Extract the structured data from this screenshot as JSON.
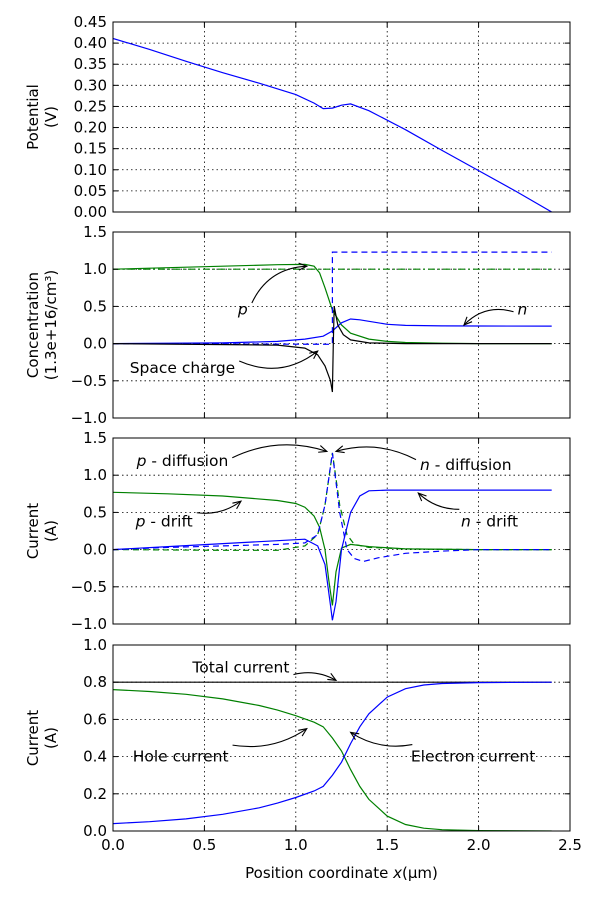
{
  "colors": {
    "blue": "#0000ff",
    "green": "#008000",
    "black": "#000000"
  },
  "chart_data": [
    {
      "type": "line",
      "ylabel": "Potential",
      "ylabel2": "(V)",
      "xlim": [
        0,
        2.5
      ],
      "ylim": [
        0,
        0.45
      ],
      "yticks": [
        "0.00",
        "0.05",
        "0.10",
        "0.15",
        "0.20",
        "0.25",
        "0.30",
        "0.35",
        "0.40",
        "0.45"
      ],
      "ytick_values": [
        0,
        0.05,
        0.1,
        0.15,
        0.2,
        0.25,
        0.3,
        0.35,
        0.4,
        0.45
      ],
      "xticks": [
        0,
        0.5,
        1.0,
        1.5,
        2.0,
        2.5
      ],
      "grid": true,
      "series": [
        {
          "color": "blue",
          "dash": "solid",
          "x": [
            0,
            0.2,
            0.4,
            0.6,
            0.8,
            1.0,
            1.1,
            1.15,
            1.2,
            1.25,
            1.3,
            1.4,
            1.6,
            1.8,
            2.0,
            2.2,
            2.4
          ],
          "y": [
            0.411,
            0.385,
            0.357,
            0.33,
            0.305,
            0.278,
            0.258,
            0.245,
            0.246,
            0.253,
            0.256,
            0.24,
            0.195,
            0.146,
            0.098,
            0.05,
            0.0
          ]
        }
      ],
      "annotations": []
    },
    {
      "type": "line",
      "ylabel": "Concentration",
      "ylabel2": "(1.3e+16/cm³)",
      "xlim": [
        0,
        2.5
      ],
      "ylim": [
        -1.0,
        1.5
      ],
      "yticks": [
        "−1.0",
        "−0.5",
        "0.0",
        "0.5",
        "1.0",
        "1.5"
      ],
      "ytick_values": [
        -1.0,
        -0.5,
        0.0,
        0.5,
        1.0,
        1.5
      ],
      "xticks": [
        0,
        0.5,
        1.0,
        1.5,
        2.0,
        2.5
      ],
      "grid": true,
      "series": [
        {
          "color": "green",
          "dash": "solid",
          "x": [
            0,
            0.3,
            0.6,
            0.9,
            1.05,
            1.1,
            1.13,
            1.16,
            1.2,
            1.25,
            1.3,
            1.4,
            1.5,
            1.6,
            1.8,
            2.0,
            2.4
          ],
          "y": [
            1.0,
            1.02,
            1.04,
            1.06,
            1.065,
            1.04,
            0.95,
            0.75,
            0.45,
            0.25,
            0.14,
            0.06,
            0.03,
            0.015,
            0.005,
            0.0,
            0.0
          ]
        },
        {
          "color": "green",
          "dash": "dashdot",
          "x": [
            0,
            1.2,
            1.2,
            2.4
          ],
          "y": [
            1.0,
            1.0,
            1.0,
            1.0
          ]
        },
        {
          "color": "blue",
          "dash": "dashed",
          "x": [
            0,
            1.18,
            1.2,
            1.2,
            2.4
          ],
          "y": [
            0.0,
            -0.01,
            0.0,
            1.23,
            1.23
          ]
        },
        {
          "color": "blue",
          "dash": "solid",
          "x": [
            0,
            0.3,
            0.6,
            0.9,
            1.05,
            1.15,
            1.2,
            1.25,
            1.3,
            1.35,
            1.4,
            1.5,
            1.6,
            1.8,
            2.0,
            2.4
          ],
          "y": [
            0.0,
            0.005,
            0.01,
            0.03,
            0.06,
            0.1,
            0.17,
            0.28,
            0.33,
            0.32,
            0.3,
            0.26,
            0.245,
            0.238,
            0.236,
            0.235
          ]
        },
        {
          "color": "black",
          "dash": "solid",
          "x": [
            0,
            0.9,
            1.05,
            1.12,
            1.16,
            1.19,
            1.2,
            1.205,
            1.21,
            1.23,
            1.26,
            1.3,
            1.4,
            1.6,
            2.4
          ],
          "y": [
            0.0,
            -0.02,
            -0.06,
            -0.15,
            -0.3,
            -0.5,
            -0.65,
            0.0,
            0.5,
            0.25,
            0.12,
            0.05,
            0.01,
            0.0,
            0.0
          ]
        }
      ],
      "annotations": [
        {
          "text_italic": "p",
          "text": "",
          "align": "middle",
          "tx": 0.71,
          "ty": 0.46,
          "ax": 1.06,
          "ay": 1.04,
          "rad": -0.3
        },
        {
          "text_italic": "n",
          "text": "",
          "align": "middle",
          "tx": 2.24,
          "ty": 0.46,
          "ax": 1.92,
          "ay": 0.25,
          "rad": 0.3
        },
        {
          "text_italic": "",
          "text": "Space charge",
          "align": "middle",
          "tx": 0.38,
          "ty": -0.33,
          "ax": 1.12,
          "ay": -0.1,
          "rad": 0.3
        }
      ]
    },
    {
      "type": "line",
      "ylabel": "Current",
      "ylabel2": "(A)",
      "xlim": [
        0,
        2.5
      ],
      "ylim": [
        -1.0,
        1.5
      ],
      "yticks": [
        "−1.0",
        "−0.5",
        "0.0",
        "0.5",
        "1.0",
        "1.5"
      ],
      "ytick_values": [
        -1.0,
        -0.5,
        0.0,
        0.5,
        1.0,
        1.5
      ],
      "xticks": [
        0,
        0.5,
        1.0,
        1.5,
        2.0,
        2.5
      ],
      "grid": true,
      "series": [
        {
          "color": "green",
          "dash": "solid",
          "x": [
            0,
            0.3,
            0.6,
            0.9,
            1.0,
            1.05,
            1.1,
            1.13,
            1.16,
            1.18,
            1.2,
            1.22,
            1.25,
            1.3,
            1.4,
            1.6,
            2.0,
            2.4
          ],
          "y": [
            0.77,
            0.75,
            0.72,
            0.66,
            0.62,
            0.57,
            0.45,
            0.3,
            0.0,
            -0.4,
            -0.75,
            -0.3,
            0.02,
            0.07,
            0.04,
            0.01,
            0.0,
            0.0
          ]
        },
        {
          "color": "green",
          "dash": "dashed",
          "x": [
            0,
            0.6,
            0.9,
            1.05,
            1.12,
            1.16,
            1.2,
            1.24,
            1.28,
            1.32,
            1.4,
            1.6,
            2.0,
            2.4
          ],
          "y": [
            0.0,
            -0.01,
            -0.01,
            0.05,
            0.2,
            0.6,
            1.3,
            0.6,
            0.2,
            0.07,
            0.03,
            0.01,
            0.0,
            0.0
          ]
        },
        {
          "color": "blue",
          "dash": "dashed",
          "x": [
            0,
            0.3,
            0.6,
            0.9,
            1.05,
            1.12,
            1.16,
            1.2,
            1.24,
            1.28,
            1.32,
            1.37,
            1.45,
            1.6,
            1.8,
            2.0,
            2.4
          ],
          "y": [
            0.0,
            0.03,
            0.05,
            0.07,
            0.09,
            0.2,
            0.6,
            1.3,
            0.5,
            0.0,
            -0.12,
            -0.16,
            -0.11,
            -0.05,
            -0.02,
            0.0,
            0.0
          ]
        },
        {
          "color": "blue",
          "dash": "solid",
          "x": [
            0,
            0.3,
            0.6,
            0.9,
            1.05,
            1.12,
            1.16,
            1.19,
            1.2,
            1.22,
            1.25,
            1.3,
            1.35,
            1.4,
            1.5,
            1.7,
            2.0,
            2.4
          ],
          "y": [
            0.0,
            0.04,
            0.08,
            0.12,
            0.14,
            0.05,
            -0.2,
            -0.75,
            -0.95,
            -0.7,
            0.0,
            0.5,
            0.72,
            0.79,
            0.8,
            0.8,
            0.8,
            0.8
          ]
        }
      ],
      "annotations": [
        {
          "text_italic": "p",
          "text": " - diffusion",
          "align": "middle",
          "tx": 0.38,
          "ty": 1.19,
          "ax": 1.17,
          "ay": 1.32,
          "rad": -0.2
        },
        {
          "text_italic": "n",
          "text": " - diffusion",
          "align": "middle",
          "tx": 1.93,
          "ty": 1.14,
          "ax": 1.22,
          "ay": 1.32,
          "rad": 0.2
        },
        {
          "text_italic": "p",
          "text": " - drift",
          "align": "middle",
          "tx": 0.28,
          "ty": 0.38,
          "ax": 0.7,
          "ay": 0.65,
          "rad": 0.2
        },
        {
          "text_italic": "n",
          "text": " - drift",
          "align": "middle",
          "tx": 2.06,
          "ty": 0.38,
          "ax": 1.67,
          "ay": 0.76,
          "rad": -0.2
        }
      ]
    },
    {
      "type": "line",
      "ylabel": "Current",
      "ylabel2": "(A)",
      "xlabel": "Position coordinate ",
      "xlabel_italic": "x",
      "xlabel_unit": "(μm)",
      "xlim": [
        0,
        2.5
      ],
      "ylim": [
        0.0,
        1.0
      ],
      "yticks": [
        "0.0",
        "0.2",
        "0.4",
        "0.6",
        "0.8",
        "1.0"
      ],
      "ytick_values": [
        0.0,
        0.2,
        0.4,
        0.6,
        0.8,
        1.0
      ],
      "xticks": [
        "0.0",
        "0.5",
        "1.0",
        "1.5",
        "2.0",
        "2.5"
      ],
      "xtick_values": [
        0,
        0.5,
        1.0,
        1.5,
        2.0,
        2.5
      ],
      "grid": true,
      "series": [
        {
          "color": "black",
          "dash": "solid",
          "x": [
            0,
            2.4
          ],
          "y": [
            0.8,
            0.8
          ]
        },
        {
          "color": "green",
          "dash": "solid",
          "x": [
            0,
            0.2,
            0.4,
            0.6,
            0.8,
            0.9,
            1.0,
            1.1,
            1.15,
            1.2,
            1.25,
            1.3,
            1.35,
            1.4,
            1.5,
            1.6,
            1.7,
            1.8,
            2.0,
            2.4
          ],
          "y": [
            0.76,
            0.75,
            0.735,
            0.71,
            0.675,
            0.65,
            0.62,
            0.585,
            0.56,
            0.5,
            0.43,
            0.33,
            0.24,
            0.17,
            0.08,
            0.035,
            0.015,
            0.007,
            0.002,
            0.0
          ]
        },
        {
          "color": "blue",
          "dash": "solid",
          "x": [
            0,
            0.2,
            0.4,
            0.6,
            0.8,
            0.9,
            1.0,
            1.1,
            1.15,
            1.2,
            1.25,
            1.3,
            1.35,
            1.4,
            1.5,
            1.6,
            1.7,
            1.8,
            2.0,
            2.4
          ],
          "y": [
            0.04,
            0.05,
            0.065,
            0.09,
            0.125,
            0.15,
            0.18,
            0.215,
            0.24,
            0.3,
            0.37,
            0.47,
            0.56,
            0.63,
            0.72,
            0.765,
            0.785,
            0.793,
            0.798,
            0.8
          ]
        }
      ],
      "annotations": [
        {
          "text_italic": "",
          "text": "Total current",
          "align": "middle",
          "tx": 0.7,
          "ty": 0.88,
          "ax": 1.22,
          "ay": 0.81,
          "rad": -0.2
        },
        {
          "text_italic": "",
          "text": "Hole current",
          "align": "middle",
          "tx": 0.37,
          "ty": 0.4,
          "ax": 1.06,
          "ay": 0.55,
          "rad": 0.2
        },
        {
          "text_italic": "",
          "text": "Electron current",
          "align": "middle",
          "tx": 1.97,
          "ty": 0.4,
          "ax": 1.3,
          "ay": 0.53,
          "rad": -0.2
        }
      ]
    }
  ]
}
